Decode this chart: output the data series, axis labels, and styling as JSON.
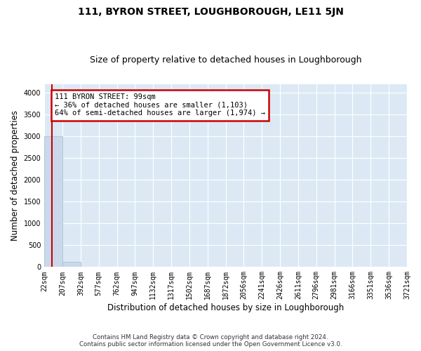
{
  "title": "111, BYRON STREET, LOUGHBOROUGH, LE11 5JN",
  "subtitle": "Size of property relative to detached houses in Loughborough",
  "xlabel": "Distribution of detached houses by size in Loughborough",
  "ylabel": "Number of detached properties",
  "footer_line1": "Contains HM Land Registry data © Crown copyright and database right 2024.",
  "footer_line2": "Contains public sector information licensed under the Open Government Licence v3.0.",
  "bin_edges": [
    22,
    207,
    392,
    577,
    762,
    947,
    1132,
    1317,
    1502,
    1687,
    1872,
    2056,
    2241,
    2426,
    2611,
    2796,
    2981,
    3166,
    3351,
    3536,
    3721
  ],
  "bin_labels": [
    "22sqm",
    "207sqm",
    "392sqm",
    "577sqm",
    "762sqm",
    "947sqm",
    "1132sqm",
    "1317sqm",
    "1502sqm",
    "1687sqm",
    "1872sqm",
    "2056sqm",
    "2241sqm",
    "2426sqm",
    "2611sqm",
    "2796sqm",
    "2981sqm",
    "3166sqm",
    "3351sqm",
    "3536sqm",
    "3721sqm"
  ],
  "bar_heights": [
    3000,
    120,
    0,
    0,
    0,
    0,
    0,
    0,
    0,
    0,
    0,
    0,
    0,
    0,
    0,
    0,
    0,
    0,
    0,
    0
  ],
  "bar_color": "#c9d9eb",
  "bar_edge_color": "#a0b8d0",
  "subject_size": 99,
  "subject_label": "111 BYRON STREET: 99sqm",
  "annotation_line1": "← 36% of detached houses are smaller (1,103)",
  "annotation_line2": "64% of semi-detached houses are larger (1,974) →",
  "vline_color": "#cc0000",
  "annotation_box_color": "#cc0000",
  "ylim": [
    0,
    4200
  ],
  "yticks": [
    0,
    500,
    1000,
    1500,
    2000,
    2500,
    3000,
    3500,
    4000
  ],
  "plot_bg_color": "#dce9f5",
  "grid_color": "#ffffff",
  "title_fontsize": 10,
  "subtitle_fontsize": 9,
  "axis_label_fontsize": 8.5,
  "tick_fontsize": 7,
  "annotation_fontsize": 7.5
}
